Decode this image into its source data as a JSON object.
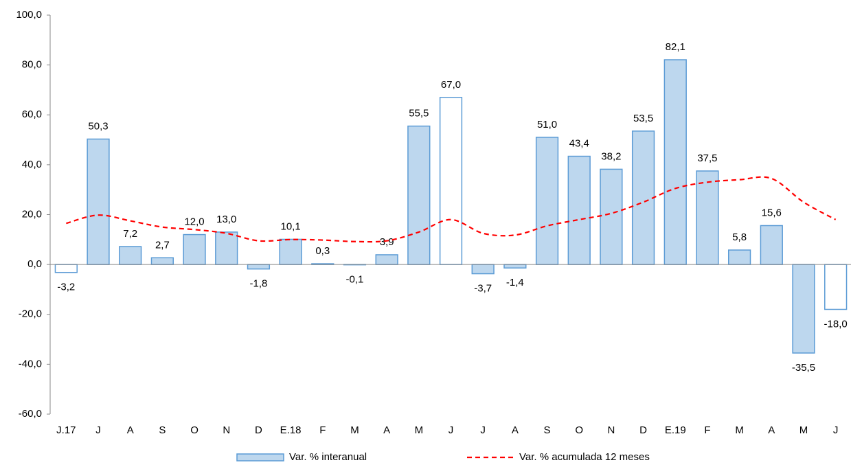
{
  "chart_data": {
    "type": "bar-line",
    "categories": [
      "J.17",
      "J",
      "A",
      "S",
      "O",
      "N",
      "D",
      "E.18",
      "F",
      "M",
      "A",
      "M",
      "J",
      "J",
      "A",
      "S",
      "O",
      "N",
      "D",
      "E.19",
      "F",
      "M",
      "A",
      "M",
      "J"
    ],
    "series": [
      {
        "name": "Var. % interanual",
        "type": "bar",
        "color": "#bdd7ee",
        "edge": "#5b9bd5",
        "colors": [
          "#ffffff",
          "#bdd7ee",
          "#bdd7ee",
          "#bdd7ee",
          "#bdd7ee",
          "#bdd7ee",
          "#bdd7ee",
          "#bdd7ee",
          "#bdd7ee",
          "#bdd7ee",
          "#bdd7ee",
          "#bdd7ee",
          "#ffffff",
          "#bdd7ee",
          "#bdd7ee",
          "#bdd7ee",
          "#bdd7ee",
          "#bdd7ee",
          "#bdd7ee",
          "#bdd7ee",
          "#bdd7ee",
          "#bdd7ee",
          "#bdd7ee",
          "#bdd7ee",
          "#ffffff"
        ],
        "values": [
          -3.2,
          50.3,
          7.2,
          2.7,
          12.0,
          13.0,
          -1.8,
          10.1,
          0.3,
          -0.1,
          3.9,
          55.5,
          67.0,
          -3.7,
          -1.4,
          51.0,
          43.4,
          38.2,
          53.5,
          82.1,
          37.5,
          5.8,
          15.6,
          -35.5,
          -18.0
        ],
        "value_labels": [
          "-3,2",
          "50,3",
          "7,2",
          "2,7",
          "12,0",
          "13,0",
          "-1,8",
          "10,1",
          "0,3",
          "-0,1",
          "3,9",
          "55,5",
          "67,0",
          "-3,7",
          "-1,4",
          "51,0",
          "43,4",
          "38,2",
          "53,5",
          "82,1",
          "37,5",
          "5,8",
          "15,6",
          "-35,5",
          "-18,0"
        ]
      },
      {
        "name": "Var. % acumulada 12 meses",
        "type": "line",
        "color": "#ff0000",
        "dashed": true,
        "values": [
          16.5,
          19.8,
          17.5,
          15.0,
          14.0,
          12.5,
          9.5,
          10.0,
          9.8,
          9.2,
          9.5,
          13.0,
          18.0,
          12.5,
          11.8,
          15.5,
          18.0,
          20.5,
          25.0,
          30.5,
          33.0,
          34.0,
          34.5,
          25.0,
          18.0
        ]
      }
    ],
    "ylim": [
      -60,
      100
    ],
    "yticks": [
      {
        "value": -60,
        "label": "-60,0"
      },
      {
        "value": -40,
        "label": "-40,0"
      },
      {
        "value": -20,
        "label": "-20,0"
      },
      {
        "value": 0,
        "label": "0,0"
      },
      {
        "value": 20,
        "label": "20,0"
      },
      {
        "value": 40,
        "label": "40,0"
      },
      {
        "value": 60,
        "label": "60,0"
      },
      {
        "value": 80,
        "label": "80,0"
      },
      {
        "value": 100,
        "label": "100,0"
      }
    ],
    "grid": false,
    "legend": "bottom"
  }
}
